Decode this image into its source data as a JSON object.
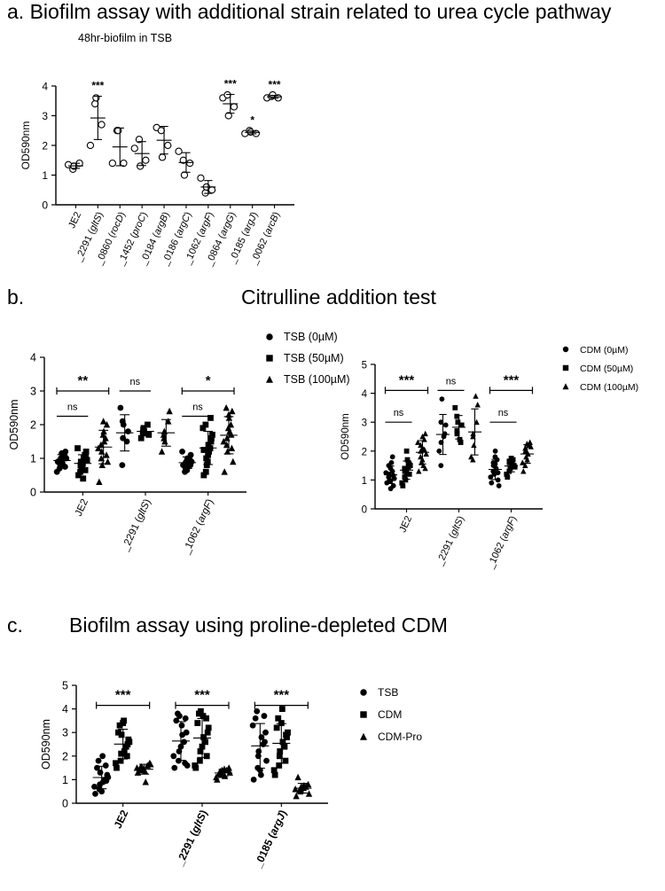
{
  "panels": {
    "a": {
      "title": "a. Biofilm assay with additional strain related to urea cycle pathway",
      "subtitle": "48hr-biofilm in TSB"
    },
    "b": {
      "title": "b.",
      "subtitle": "Citrulline addition test"
    },
    "c": {
      "title": "c.",
      "subtitle": "Biofilm assay using  proline-depleted CDM"
    }
  },
  "chart_data": [
    {
      "id": "a",
      "type": "scatter",
      "ylabel": "OD590nm",
      "ylim": [
        0,
        4
      ],
      "yticks": [
        "0",
        "1",
        "2",
        "3",
        "4"
      ],
      "categories": [
        "JE2",
        "_2291 (gltS)",
        "_0860 (rocD)",
        "_1452 (proC)",
        "_0184 (argB)",
        "_0186 (argC)",
        "_1062 (argF)",
        "_0864 (argG)",
        "_0185 (argJ)",
        "_0062 (arcB)"
      ],
      "marker": "circle-open",
      "series": [
        {
          "values": [
            [
              1.35,
              1.2,
              1.3,
              1.4
            ],
            [
              2.0,
              3.4,
              3.6,
              2.7
            ],
            [
              1.4,
              2.5,
              2.5,
              1.4
            ],
            [
              1.9,
              2.2,
              1.3,
              1.5
            ],
            [
              2.6,
              2.5,
              1.6,
              2.0
            ],
            [
              1.8,
              1.5,
              1.0,
              1.4
            ],
            [
              0.9,
              0.4,
              0.6,
              0.5
            ],
            [
              3.6,
              3.7,
              3.0,
              3.3
            ],
            [
              2.4,
              2.5,
              2.45,
              2.4
            ],
            [
              3.6,
              3.65,
              3.7,
              3.6
            ]
          ]
        }
      ],
      "annotations": [
        {
          "category": "_2291 (gltS)",
          "text": "***"
        },
        {
          "category": "_0864 (argG)",
          "text": "***"
        },
        {
          "category": "_0185 (argJ)",
          "text": "*"
        },
        {
          "category": "_0062 (arcB)",
          "text": "***"
        }
      ]
    },
    {
      "id": "b1",
      "type": "scatter",
      "ylabel": "OD590nm",
      "ylim": [
        0,
        4
      ],
      "yticks": [
        "0",
        "1",
        "2",
        "3",
        "4"
      ],
      "categories": [
        "JE2",
        "_2291 (gltS)",
        "_1062 (argF)"
      ],
      "series": [
        {
          "name": "TSB (0µM)",
          "marker": "circle",
          "values": [
            [
              0.9,
              1.0,
              0.8,
              1.1,
              1.2,
              0.7,
              0.95,
              1.05,
              0.85,
              1.0,
              0.6,
              1.15,
              0.9,
              0.75,
              1.1
            ],
            [
              2.5,
              2.0,
              1.6,
              1.5,
              1.8,
              0.8,
              2.1
            ],
            [
              0.8,
              0.9,
              0.7,
              1.0,
              1.1,
              0.6,
              0.85,
              0.95,
              0.75,
              0.9,
              1.2,
              0.65,
              1.0,
              0.8
            ]
          ]
        },
        {
          "name": "TSB (50µM)",
          "marker": "square",
          "values": [
            [
              0.5,
              0.7,
              0.9,
              1.1,
              1.2,
              0.6,
              0.8,
              1.0,
              0.4,
              0.95,
              1.3,
              0.75,
              0.85,
              1.05,
              0.65
            ],
            [
              1.6,
              1.8,
              1.9,
              2.0,
              1.7,
              1.75,
              1.85
            ],
            [
              0.5,
              0.8,
              1.0,
              1.3,
              1.6,
              2.0,
              0.6,
              1.2,
              1.4,
              1.7,
              1.9,
              0.9,
              1.1,
              1.5,
              2.2,
              1.25
            ]
          ]
        },
        {
          "name": "TSB (100µM)",
          "marker": "triangle",
          "values": [
            [
              0.3,
              0.8,
              1.2,
              1.6,
              2.0,
              1.4,
              1.0,
              1.5,
              1.8,
              0.9,
              1.3,
              1.7,
              2.1,
              1.1
            ],
            [
              1.2,
              1.5,
              1.8,
              2.1,
              2.4,
              1.7,
              1.6
            ],
            [
              0.6,
              1.2,
              1.6,
              2.0,
              2.4,
              2.5,
              1.4,
              1.8,
              2.2,
              0.9,
              1.5,
              1.9,
              2.3,
              1.3,
              1.7
            ]
          ]
        }
      ],
      "brackets": [
        {
          "from": "JE2",
          "to": "JE2",
          "text": "**",
          "level": 3.0
        },
        {
          "from": "JE2",
          "to": "JE2",
          "text": "ns",
          "level": 2.25
        },
        {
          "from": "_2291 (gltS)",
          "to": "_2291 (gltS)",
          "text": "ns",
          "level": 3.0
        },
        {
          "from": "_1062 (argF)",
          "to": "_1062 (argF)",
          "text": "*",
          "level": 3.0
        },
        {
          "from": "_1062 (argF)",
          "to": "_1062 (argF)",
          "text": "ns",
          "level": 2.25
        }
      ],
      "legend": "right"
    },
    {
      "id": "b2",
      "type": "scatter",
      "ylabel": "OD590nm",
      "ylim": [
        0,
        5
      ],
      "yticks": [
        "0",
        "1",
        "2",
        "3",
        "4",
        "5"
      ],
      "categories": [
        "JE2",
        "_2291 (gltS)",
        "_1062 (argF)"
      ],
      "series": [
        {
          "name": "CDM (0µM)",
          "marker": "circle",
          "values": [
            [
              0.9,
              1.0,
              1.2,
              1.3,
              0.8,
              1.1,
              1.5,
              1.6,
              0.7,
              1.05,
              1.25,
              0.95,
              1.4,
              1.15,
              1.8
            ],
            [
              2.0,
              3.8,
              2.3,
              2.6,
              2.9,
              1.5,
              3.0,
              2.5
            ],
            [
              0.9,
              1.2,
              1.5,
              1.7,
              1.0,
              1.3,
              1.6,
              1.4,
              2.0,
              0.8,
              1.1,
              1.8,
              1.55,
              1.25
            ]
          ]
        },
        {
          "name": "CDM (50µM)",
          "marker": "square",
          "values": [
            [
              0.8,
              1.0,
              1.3,
              1.6,
              1.2,
              1.4,
              1.1,
              1.7,
              2.0,
              1.5,
              0.9,
              1.35,
              1.25,
              1.55,
              1.45
            ],
            [
              3.5,
              3.0,
              2.6,
              2.3,
              2.9,
              3.2,
              2.7,
              2.4
            ],
            [
              1.1,
              1.4,
              1.6,
              1.7,
              1.5,
              1.3,
              1.65,
              1.55,
              1.75,
              1.45,
              1.2,
              1.6
            ]
          ]
        },
        {
          "name": "CDM (100µM)",
          "marker": "triangle",
          "values": [
            [
              1.3,
              1.6,
              2.0,
              2.4,
              2.6,
              1.8,
              2.2,
              1.5,
              2.1,
              1.9,
              2.3,
              1.7,
              2.5,
              1.4,
              2.05
            ],
            [
              1.8,
              2.2,
              2.6,
              3.0,
              3.6,
              1.7,
              2.5,
              3.9
            ],
            [
              1.3,
              1.8,
              2.0,
              2.2,
              2.3,
              1.5,
              2.1,
              1.9,
              1.7,
              2.15,
              1.6,
              2.25
            ]
          ]
        }
      ],
      "brackets": [
        {
          "from": "JE2",
          "to": "JE2",
          "text": "***",
          "level": 4.1
        },
        {
          "from": "JE2",
          "to": "JE2",
          "text": "ns",
          "level": 3.0
        },
        {
          "from": "_2291 (gltS)",
          "to": "_2291 (gltS)",
          "text": "ns",
          "level": 4.1
        },
        {
          "from": "_1062 (argF)",
          "to": "_1062 (argF)",
          "text": "***",
          "level": 4.1
        },
        {
          "from": "_1062 (argF)",
          "to": "_1062 (argF)",
          "text": "ns",
          "level": 3.0
        }
      ],
      "legend": "right"
    },
    {
      "id": "c",
      "type": "scatter",
      "ylabel": "OD590nm",
      "ylim": [
        0,
        5
      ],
      "yticks": [
        "0",
        "1",
        "2",
        "3",
        "4",
        "5"
      ],
      "categories": [
        "JE2",
        "_2291 (gltS)",
        "_0185 (argJ)"
      ],
      "series": [
        {
          "name": "TSB",
          "marker": "circle",
          "values": [
            [
              0.4,
              0.6,
              0.8,
              1.0,
              1.2,
              1.5,
              1.8,
              2.0,
              0.9,
              1.1,
              0.7,
              1.3,
              0.5,
              1.6,
              0.95
            ],
            [
              1.5,
              1.8,
              2.2,
              2.6,
              3.0,
              3.5,
              3.8,
              3.3,
              2.9,
              1.6,
              2.0,
              3.7,
              2.4,
              1.7,
              3.6
            ],
            [
              1.0,
              1.5,
              2.0,
              2.5,
              3.0,
              3.6,
              3.9,
              1.2,
              2.8,
              1.8,
              3.3,
              2.2,
              1.4,
              3.7,
              2.6
            ]
          ]
        },
        {
          "name": "CDM",
          "marker": "square",
          "values": [
            [
              1.5,
              1.8,
              2.1,
              2.4,
              2.7,
              3.0,
              3.3,
              3.5,
              2.2,
              2.6,
              1.7,
              2.9,
              3.4,
              2.0,
              2.5
            ],
            [
              1.5,
              1.8,
              2.2,
              2.6,
              3.0,
              3.4,
              3.8,
              3.7,
              2.8,
              3.2,
              1.6,
              3.9,
              2.4,
              3.6,
              2.0
            ],
            [
              1.2,
              1.6,
              2.0,
              2.4,
              2.8,
              3.2,
              3.6,
              4.0,
              2.6,
              3.0,
              1.4,
              2.2,
              3.4,
              1.8,
              2.9
            ]
          ]
        },
        {
          "name": "CDM-Pro",
          "marker": "triangle",
          "values": [
            [
              1.3,
              1.4,
              1.5,
              1.6,
              1.7,
              1.45,
              1.55,
              1.35,
              0.9,
              1.65,
              1.5,
              1.4
            ],
            [
              1.0,
              1.2,
              1.3,
              1.4,
              1.5,
              1.25,
              1.35,
              1.45,
              1.15,
              1.3,
              1.1,
              1.4
            ],
            [
              0.3,
              0.5,
              0.6,
              0.7,
              0.8,
              1.1,
              0.55,
              0.65,
              0.75,
              0.4,
              0.6,
              0.7
            ]
          ]
        }
      ],
      "brackets": [
        {
          "from": "JE2",
          "to": "JE2",
          "text": "***",
          "level": 4.15
        },
        {
          "from": "_2291 (gltS)",
          "to": "_2291 (gltS)",
          "text": "***",
          "level": 4.15
        },
        {
          "from": "_0185 (argJ)",
          "to": "_0185 (argJ)",
          "text": "***",
          "level": 4.15
        }
      ],
      "legend": "right"
    }
  ]
}
